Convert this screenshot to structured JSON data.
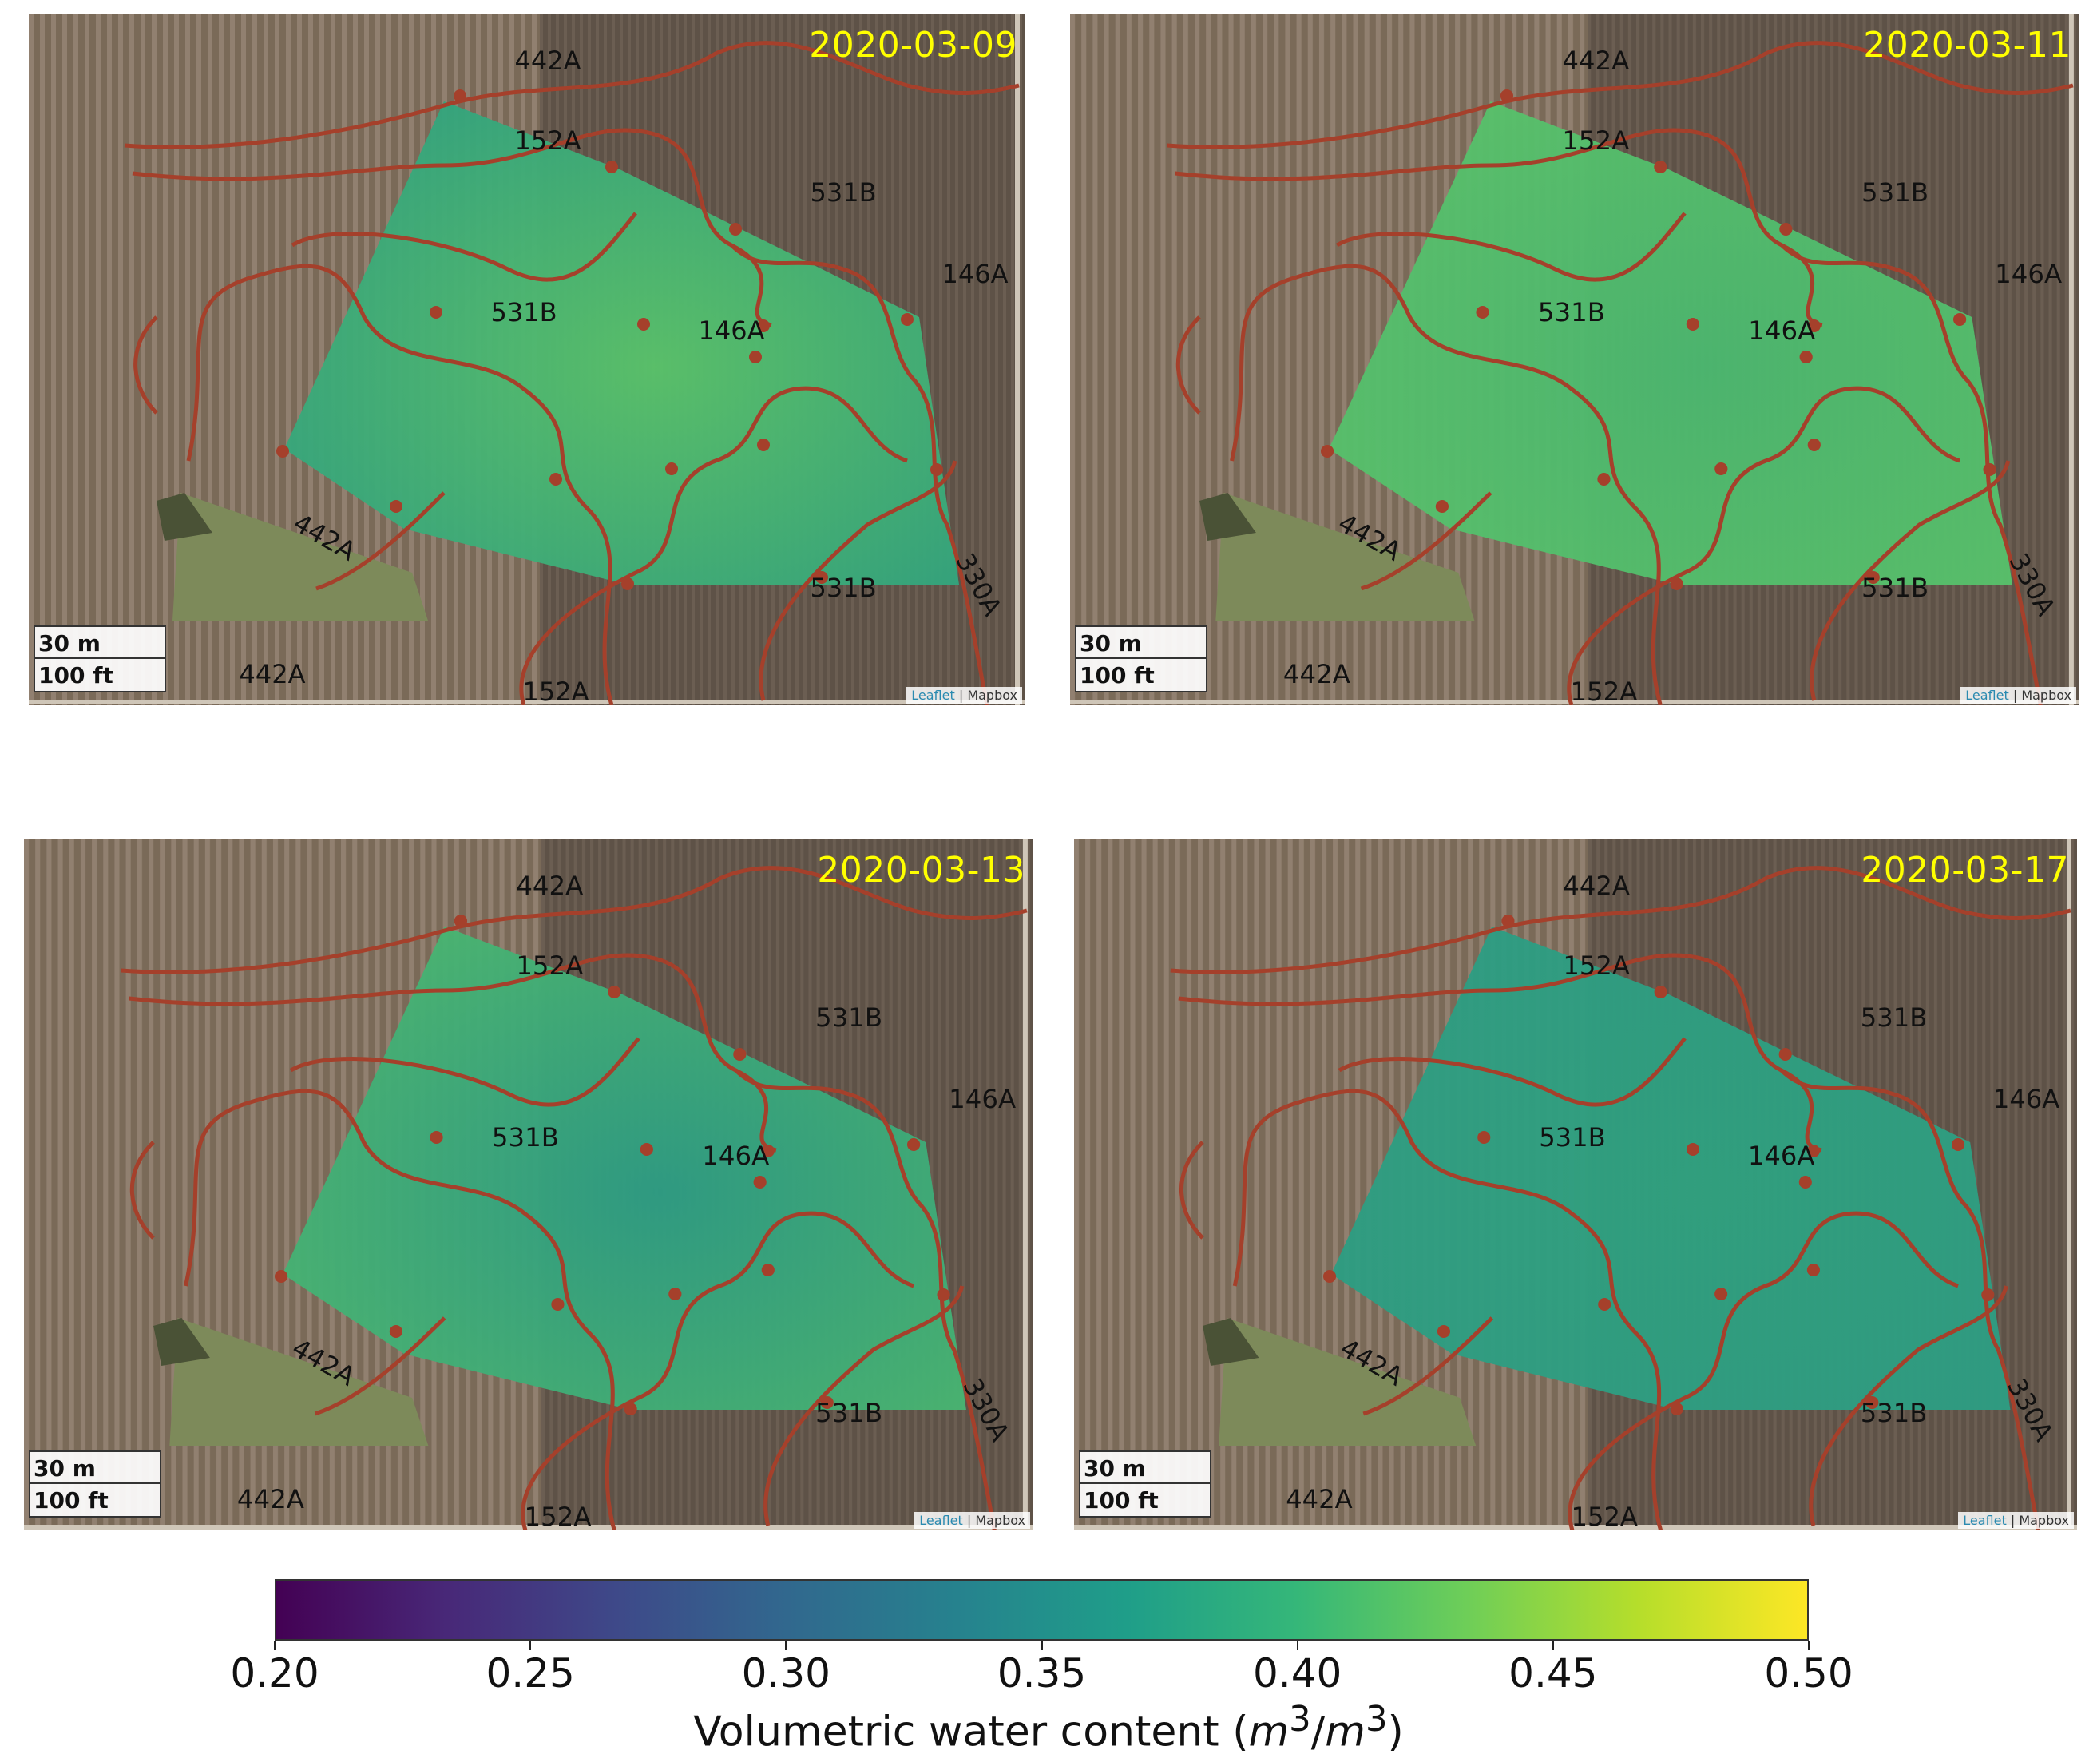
{
  "panels": [
    {
      "date": "2020-03-09",
      "scale_m": "30 m",
      "scale_ft": "100 ft",
      "attribution_leaflet": "Leaflet",
      "attribution_mapbox": "Mapbox",
      "labels": [
        "442A",
        "152A",
        "531B",
        "146A",
        "531B",
        "146A",
        "442A",
        "531B",
        "330A",
        "442A",
        "152A"
      ]
    },
    {
      "date": "2020-03-11",
      "scale_m": "30 m",
      "scale_ft": "100 ft",
      "attribution_leaflet": "Leaflet",
      "attribution_mapbox": "Mapbox",
      "labels": [
        "442A",
        "152A",
        "531B",
        "146A",
        "531B",
        "146A",
        "442A",
        "531B",
        "330A",
        "442A",
        "152A"
      ]
    },
    {
      "date": "2020-03-13",
      "scale_m": "30 m",
      "scale_ft": "100 ft",
      "attribution_leaflet": "Leaflet",
      "attribution_mapbox": "Mapbox",
      "labels": [
        "442A",
        "152A",
        "531B",
        "146A",
        "531B",
        "146A",
        "442A",
        "531B",
        "330A",
        "442A",
        "152A"
      ]
    },
    {
      "date": "2020-03-17",
      "scale_m": "30 m",
      "scale_ft": "100 ft",
      "attribution_leaflet": "Leaflet",
      "attribution_mapbox": "Mapbox",
      "labels": [
        "442A",
        "152A",
        "531B",
        "146A",
        "531B",
        "146A",
        "442A",
        "531B",
        "330A",
        "442A",
        "152A"
      ]
    }
  ],
  "colorbar": {
    "ticks": [
      "0.20",
      "0.25",
      "0.30",
      "0.35",
      "0.40",
      "0.45",
      "0.50"
    ],
    "range": [
      0.2,
      0.5
    ],
    "colormap": "viridis",
    "title_prefix": "Volumetric water content (",
    "title_unit": "m",
    "title_exp": "3",
    "title_sep": "/",
    "title_suffix": ")"
  },
  "colors": {
    "date_label": "#ffff00",
    "soil_boundary": "#a5402b",
    "sensor_point": "#a5402b"
  }
}
